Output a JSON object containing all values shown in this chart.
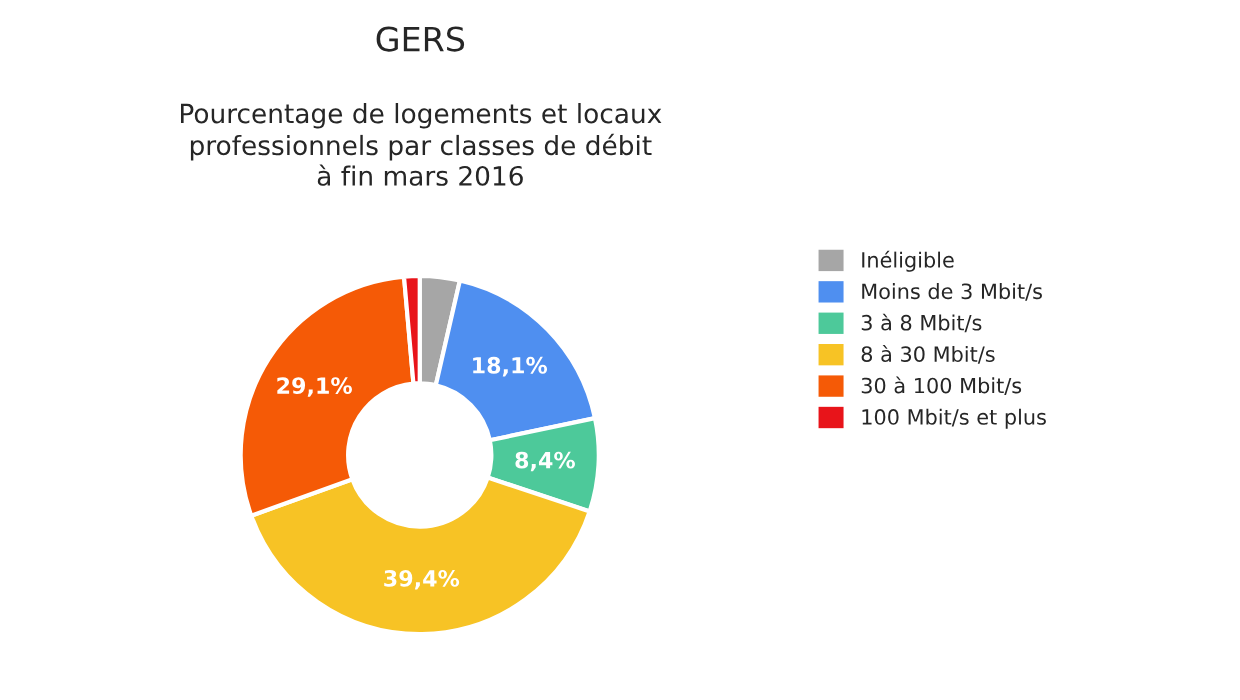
{
  "chart_data": {
    "type": "donut",
    "title": "GERS",
    "subtitle": "Pourcentage de logements et locaux\nprofessionnels par classes de débit\nà fin mars 2016",
    "categories": [
      "Inéligible",
      "Moins de 3 Mbit/s",
      "3 à 8 Mbit/s",
      "8 à 30 Mbit/s",
      "30 à 100 Mbit/s",
      "100 Mbit/s et plus"
    ],
    "values": [
      3.6,
      18.1,
      8.4,
      39.4,
      29.1,
      1.4
    ],
    "value_labels": [
      null,
      "18,1%",
      "8,4%",
      "39,4%",
      "29,1%",
      null
    ],
    "colors": [
      "#a6a6a6",
      "#4f8ff0",
      "#4dc99a",
      "#f7c325",
      "#f55a06",
      "#e8141a"
    ],
    "legend": "right"
  }
}
